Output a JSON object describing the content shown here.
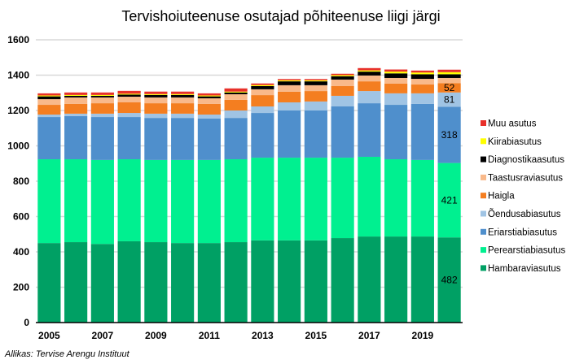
{
  "chart_data": {
    "type": "bar",
    "stacked": true,
    "title": "Tervishoiuteenuse osutajad põhiteenuse liigi järgi",
    "source": "Allikas: Tervise Arengu Instituut",
    "categories": [
      "2005",
      "2006",
      "2007",
      "2008",
      "2009",
      "2010",
      "2011",
      "2012",
      "2013",
      "2014",
      "2015",
      "2016",
      "2017",
      "2018",
      "2019",
      "2020"
    ],
    "x_tick_labels": [
      "2005",
      "2007",
      "2009",
      "2011",
      "2013",
      "2015",
      "2017",
      "2019"
    ],
    "y_tick_labels": [
      "0",
      "200",
      "400",
      "600",
      "800",
      "1000",
      "1200",
      "1400",
      "1600"
    ],
    "ylim": [
      0,
      1600
    ],
    "grid": true,
    "legend_position": "right",
    "series": [
      {
        "name": "Hambaraviasutus",
        "color": "#00a064",
        "values": [
          450,
          455,
          445,
          460,
          455,
          450,
          450,
          455,
          465,
          465,
          465,
          478,
          487,
          487,
          487,
          482
        ]
      },
      {
        "name": "Perearstiabiasutus",
        "color": "#00f090",
        "values": [
          474,
          469,
          475,
          464,
          465,
          470,
          470,
          469,
          468,
          468,
          468,
          455,
          451,
          437,
          433,
          421
        ]
      },
      {
        "name": "Eriarstiabiasutus",
        "color": "#4f8fcc",
        "values": [
          239,
          244,
          243,
          239,
          238,
          238,
          234,
          234,
          253,
          267,
          267,
          290,
          303,
          308,
          317,
          318
        ]
      },
      {
        "name": "Õendusabiasutus",
        "color": "#a0c4e4",
        "values": [
          14,
          14,
          19,
          23,
          24,
          24,
          23,
          42,
          37,
          46,
          51,
          60,
          69,
          65,
          60,
          81
        ]
      },
      {
        "name": "Haigla",
        "color": "#f47e20",
        "values": [
          55,
          55,
          59,
          60,
          59,
          59,
          60,
          60,
          64,
          60,
          59,
          55,
          55,
          55,
          50,
          52
        ]
      },
      {
        "name": "Taastusraviasutus",
        "color": "#f9b98a",
        "values": [
          32,
          37,
          33,
          32,
          33,
          33,
          32,
          32,
          33,
          37,
          33,
          37,
          33,
          32,
          32,
          30
        ]
      },
      {
        "name": "Diagnostikaasutus",
        "color": "#000000",
        "values": [
          16,
          9,
          9,
          12,
          14,
          14,
          11,
          10,
          18,
          22,
          22,
          19,
          22,
          26,
          26,
          21
        ]
      },
      {
        "name": "Kiirabiasutus",
        "color": "#ffff00",
        "values": [
          5,
          5,
          5,
          5,
          5,
          5,
          5,
          5,
          6,
          6,
          6,
          6,
          7,
          10,
          10,
          12
        ]
      },
      {
        "name": "Muu asutus",
        "color": "#e8302a",
        "values": [
          12,
          14,
          14,
          16,
          14,
          14,
          12,
          18,
          9,
          7,
          7,
          8,
          13,
          12,
          11,
          14
        ]
      }
    ],
    "data_labels": [
      {
        "category": "2020",
        "series": "Hambaraviasutus",
        "text": "482"
      },
      {
        "category": "2020",
        "series": "Perearstiabiasutus",
        "text": "421"
      },
      {
        "category": "2020",
        "series": "Eriarstiabiasutus",
        "text": "318"
      },
      {
        "category": "2020",
        "series": "Õendusabiasutus",
        "text": "81"
      },
      {
        "category": "2020",
        "series": "Haigla",
        "text": "52"
      }
    ],
    "grid_color": "#d9d9d9"
  }
}
